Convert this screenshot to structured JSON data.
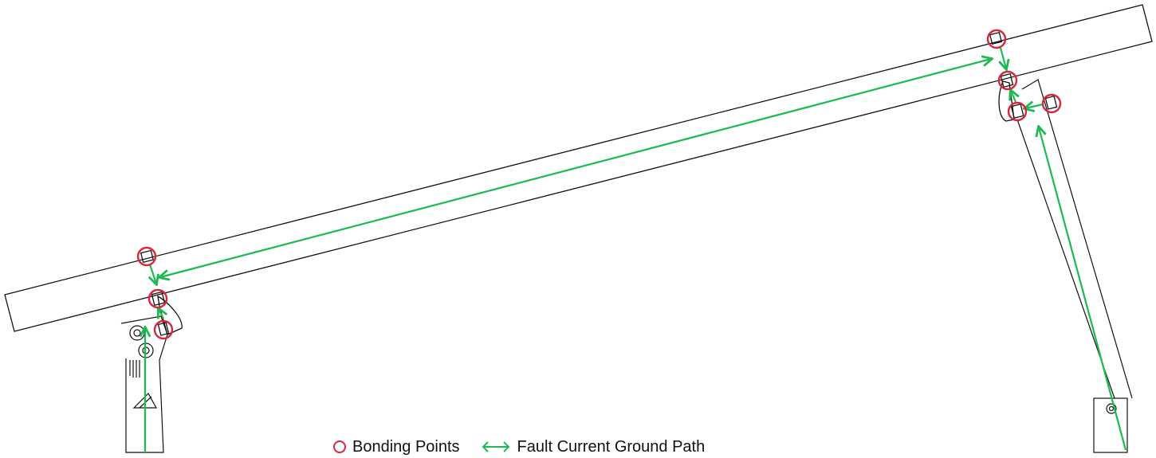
{
  "legend": {
    "bonding_label": "Bonding Points",
    "path_label": "Fault Current Ground Path",
    "bonding_icon": "red-ring-icon",
    "path_icon": "double-arrow-icon"
  },
  "colors": {
    "bonding": "#d7263d",
    "ground_path": "#1db954",
    "structure": "#111111",
    "background": "#ffffff"
  }
}
